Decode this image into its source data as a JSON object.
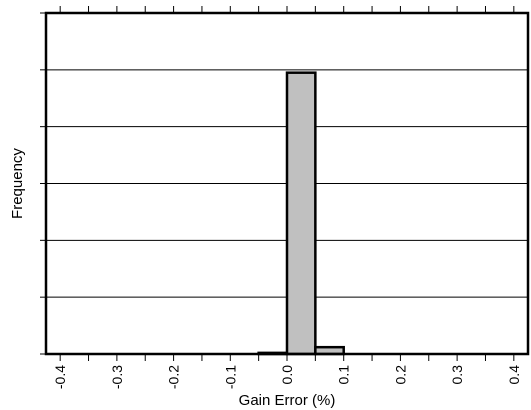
{
  "chart_data": {
    "type": "bar",
    "title": "",
    "xlabel": "Gain Error (%)",
    "ylabel": "Frequency",
    "xlim": [
      -0.425,
      0.425
    ],
    "ylim": [
      0,
      6
    ],
    "xticks": [
      -0.4,
      -0.3,
      -0.2,
      -0.1,
      0.0,
      0.1,
      0.2,
      0.3,
      0.4
    ],
    "xtick_labels": [
      "-0.4",
      "-0.3",
      "-0.2",
      "-0.1",
      "0.0",
      "0.1",
      "0.2",
      "0.3",
      "0.4"
    ],
    "minor_xtick_step": 0.05,
    "yticks": [
      0,
      1,
      2,
      3,
      4,
      5,
      6
    ],
    "y_gridlines": [
      1,
      2,
      3,
      4,
      5
    ],
    "grid": "horizontal",
    "bins": [
      {
        "x0": -0.05,
        "x1": 0.0,
        "value": 0.02
      },
      {
        "x0": 0.0,
        "x1": 0.05,
        "value": 4.95
      },
      {
        "x0": 0.05,
        "x1": 0.1,
        "value": 0.12
      }
    ],
    "bar_color": "#c0c0c0",
    "edge_color": "#000000"
  }
}
